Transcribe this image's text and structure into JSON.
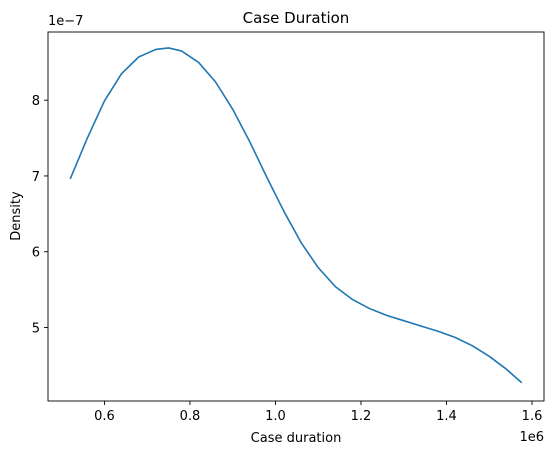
{
  "chart_data": {
    "type": "line",
    "title": "Case Duration",
    "xlabel": "Case duration",
    "ylabel": "Density",
    "x_offset_label": "1e6",
    "y_offset_label": "1e−7",
    "xlim": [
      0.468,
      1.628
    ],
    "ylim": [
      4.03,
      8.9
    ],
    "x_ticks": [
      0.6,
      0.8,
      1.0,
      1.2,
      1.4,
      1.6
    ],
    "x_tick_labels": [
      "0.6",
      "0.8",
      "1.0",
      "1.2",
      "1.4",
      "1.6"
    ],
    "y_ticks": [
      5,
      6,
      7,
      8
    ],
    "y_tick_labels": [
      "5",
      "6",
      "7",
      "8"
    ],
    "grid": false,
    "line_color": "#1f77b4",
    "series": [
      {
        "x": [
          0.52,
          0.56,
          0.6,
          0.64,
          0.68,
          0.72,
          0.75,
          0.78,
          0.82,
          0.86,
          0.9,
          0.94,
          0.98,
          1.02,
          1.06,
          1.1,
          1.14,
          1.18,
          1.22,
          1.26,
          1.3,
          1.34,
          1.38,
          1.42,
          1.46,
          1.5,
          1.54,
          1.576
        ],
        "y": [
          6.96,
          7.5,
          7.99,
          8.35,
          8.57,
          8.67,
          8.69,
          8.65,
          8.5,
          8.24,
          7.88,
          7.45,
          6.98,
          6.53,
          6.12,
          5.79,
          5.54,
          5.37,
          5.25,
          5.16,
          5.09,
          5.02,
          4.95,
          4.87,
          4.76,
          4.62,
          4.45,
          4.27
        ]
      }
    ]
  }
}
